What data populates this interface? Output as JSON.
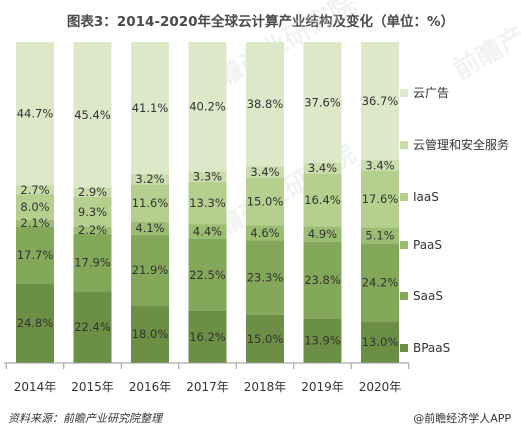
{
  "title": "图表3：2014-2020年全球云计算产业结构及变化（单位：%）",
  "source": "资料来源：前瞻产业研究院整理",
  "brand": "@前瞻经济学人APP",
  "watermark": "前瞻产业研究院",
  "chart_data": {
    "type": "bar",
    "stacked": true,
    "categories": [
      "2014年",
      "2015年",
      "2016年",
      "2017年",
      "2018年",
      "2019年",
      "2020年"
    ],
    "series": [
      {
        "name": "BPaaS",
        "color": "#6b8f44",
        "values": [
          24.8,
          22.4,
          18.0,
          16.2,
          15.0,
          13.9,
          13.0
        ]
      },
      {
        "name": "SaaS",
        "color": "#84a85a",
        "values": [
          17.7,
          17.9,
          21.9,
          22.5,
          23.3,
          23.8,
          24.2
        ]
      },
      {
        "name": "PaaS",
        "color": "#9bbd72",
        "values": [
          2.1,
          2.2,
          4.1,
          4.4,
          4.6,
          4.9,
          5.1
        ]
      },
      {
        "name": "IaaS",
        "color": "#b4cf8e",
        "values": [
          8.0,
          9.3,
          11.6,
          13.3,
          15.0,
          16.4,
          17.6
        ]
      },
      {
        "name": "云管理和安全服务",
        "color": "#c9dcab",
        "values": [
          2.7,
          2.9,
          3.2,
          3.3,
          3.4,
          3.4,
          3.4
        ]
      },
      {
        "name": "云广告",
        "color": "#dce8c8",
        "values": [
          44.7,
          45.4,
          41.1,
          40.2,
          38.8,
          37.6,
          36.7
        ]
      }
    ],
    "labels": [
      [
        "24.8%",
        "22.4%",
        "18.0%",
        "16.2%",
        "15.0%",
        "13.9%",
        "13.0%"
      ],
      [
        "17.7%",
        "17.9%",
        "21.9%",
        "22.5%",
        "23.3%",
        "23.8%",
        "24.2%"
      ],
      [
        "2.1%",
        "2.2%",
        "4.1%",
        "4.4%",
        "4.6%",
        "4.9%",
        "5.1%"
      ],
      [
        "8.0%",
        "9.3%",
        "11.6%",
        "13.3%",
        "15.0%",
        "16.4%",
        "17.6%"
      ],
      [
        "2.7%",
        "2.9%",
        "3.2%",
        "3.3%",
        "3.4%",
        "3.4%",
        "3.4%"
      ],
      [
        "44.7%",
        "45.4%",
        "41.1%",
        "40.2%",
        "38.8%",
        "37.6%",
        "36.7%"
      ]
    ],
    "legend_position": "right",
    "ylim": [
      0,
      100
    ]
  }
}
